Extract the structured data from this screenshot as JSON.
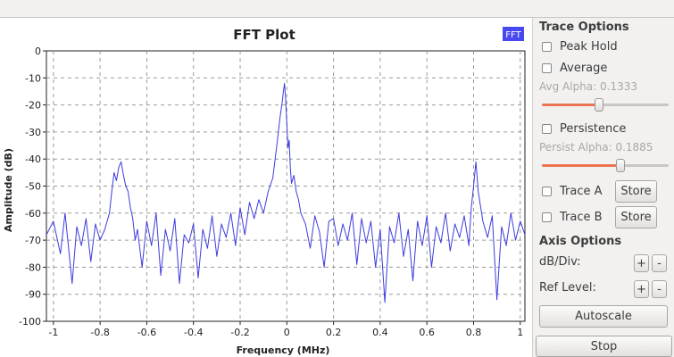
{
  "plot": {
    "title": "FFT Plot",
    "legend_label": "FFT",
    "legend_color": "#4848f0",
    "trace_color": "#3c3cde"
  },
  "chart_data": {
    "type": "line",
    "title": "FFT Plot",
    "xlabel": "Frequency (MHz)",
    "ylabel": "Amplitude (dB)",
    "xlim": [
      -1.03,
      1.02
    ],
    "ylim": [
      -100,
      0
    ],
    "xticks": [
      -1,
      -0.8,
      -0.6,
      -0.4,
      -0.2,
      0,
      0.2,
      0.4,
      0.6,
      0.8,
      1
    ],
    "xtick_labels": [
      "-1",
      "-0.8",
      "-0.6",
      "-0.4",
      "-0.2",
      "0",
      "0.2",
      "0.4",
      "0.6",
      "0.8",
      "1"
    ],
    "yticks": [
      0,
      -10,
      -20,
      -30,
      -40,
      -50,
      -60,
      -70,
      -80,
      -90,
      -100
    ],
    "ytick_labels": [
      "0",
      "-10",
      "-20",
      "-30",
      "-40",
      "-50",
      "-60",
      "-70",
      "-80",
      "-90",
      "-100"
    ],
    "grid": true,
    "legend": "top-right",
    "series": [
      {
        "name": "FFT",
        "x": [
          -1.03,
          -1.0,
          -0.97,
          -0.95,
          -0.92,
          -0.9,
          -0.88,
          -0.86,
          -0.84,
          -0.82,
          -0.8,
          -0.78,
          -0.76,
          -0.75,
          -0.74,
          -0.73,
          -0.72,
          -0.71,
          -0.7,
          -0.69,
          -0.68,
          -0.67,
          -0.66,
          -0.65,
          -0.64,
          -0.62,
          -0.6,
          -0.58,
          -0.56,
          -0.54,
          -0.52,
          -0.5,
          -0.48,
          -0.46,
          -0.44,
          -0.42,
          -0.4,
          -0.38,
          -0.36,
          -0.34,
          -0.32,
          -0.3,
          -0.28,
          -0.26,
          -0.24,
          -0.22,
          -0.2,
          -0.18,
          -0.16,
          -0.14,
          -0.12,
          -0.1,
          -0.08,
          -0.06,
          -0.05,
          -0.04,
          -0.03,
          -0.02,
          -0.015,
          -0.01,
          -0.005,
          0.0,
          0.005,
          0.01,
          0.015,
          0.02,
          0.03,
          0.04,
          0.05,
          0.06,
          0.08,
          0.1,
          0.12,
          0.14,
          0.16,
          0.18,
          0.2,
          0.22,
          0.24,
          0.26,
          0.28,
          0.3,
          0.32,
          0.34,
          0.36,
          0.38,
          0.4,
          0.42,
          0.44,
          0.46,
          0.48,
          0.5,
          0.52,
          0.54,
          0.56,
          0.58,
          0.6,
          0.62,
          0.64,
          0.66,
          0.68,
          0.7,
          0.72,
          0.74,
          0.76,
          0.78,
          0.79,
          0.8,
          0.81,
          0.82,
          0.84,
          0.86,
          0.88,
          0.9,
          0.92,
          0.94,
          0.96,
          0.98,
          1.0,
          1.02
        ],
        "y": [
          -68,
          -63,
          -75,
          -60,
          -86,
          -65,
          -72,
          -62,
          -78,
          -64,
          -70,
          -66,
          -60,
          -52,
          -45,
          -48,
          -43,
          -41,
          -46,
          -50,
          -52,
          -58,
          -62,
          -70,
          -66,
          -80,
          -63,
          -72,
          -60,
          -83,
          -66,
          -74,
          -62,
          -86,
          -68,
          -71,
          -64,
          -84,
          -66,
          -73,
          -61,
          -76,
          -64,
          -69,
          -60,
          -72,
          -58,
          -68,
          -56,
          -62,
          -55,
          -60,
          -52,
          -47,
          -40,
          -33,
          -25,
          -19,
          -15,
          -12,
          -18,
          -27,
          -36,
          -33,
          -43,
          -49,
          -46,
          -52,
          -55,
          -60,
          -64,
          -73,
          -61,
          -67,
          -80,
          -63,
          -62,
          -72,
          -64,
          -70,
          -60,
          -79,
          -62,
          -71,
          -63,
          -80,
          -66,
          -93,
          -65,
          -71,
          -60,
          -76,
          -66,
          -85,
          -63,
          -72,
          -61,
          -80,
          -65,
          -71,
          -60,
          -74,
          -64,
          -69,
          -61,
          -72,
          -58,
          -50,
          -41,
          -52,
          -63,
          -69,
          -61,
          -92,
          -65,
          -72,
          -60,
          -70,
          -63,
          -68
        ]
      }
    ]
  },
  "panel": {
    "trace_options_title": "Trace Options",
    "peak_hold_label": "Peak Hold",
    "average_label": "Average",
    "avg_alpha_text": "Avg Alpha: 0.1333",
    "avg_alpha_value": 0.1333,
    "persistence_label": "Persistence",
    "persist_alpha_text": "Persist Alpha: 0.1885",
    "persist_alpha_value": 0.1885,
    "trace_a_label": "Trace A",
    "trace_b_label": "Trace B",
    "store_label": "Store",
    "axis_options_title": "Axis Options",
    "db_div_label": "dB/Div:",
    "ref_level_label": "Ref Level:",
    "plus_label": "+",
    "minus_label": "-",
    "autoscale_label": "Autoscale",
    "stop_label": "Stop"
  },
  "slider_scale_max": 0.3
}
